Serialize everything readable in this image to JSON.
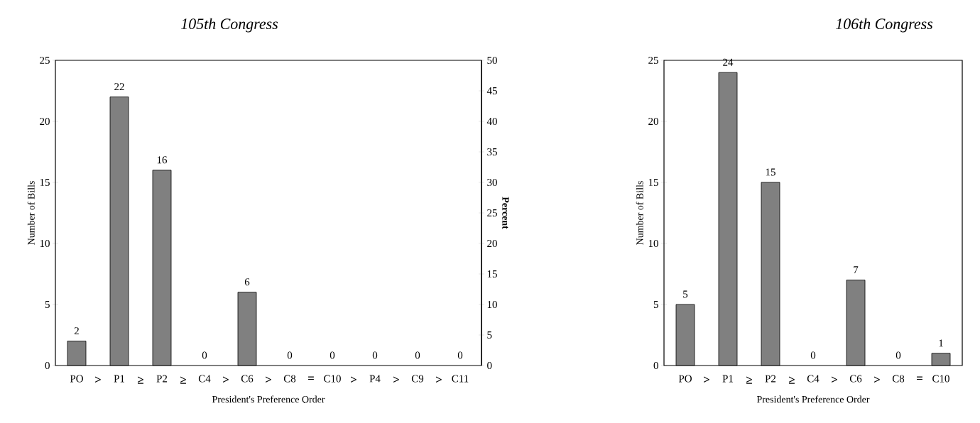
{
  "chart_data": [
    {
      "type": "bar",
      "title": "105th Congress",
      "xlabel": "President's Preference Order",
      "ylabel": "Number of Bills",
      "y2label": "Percent",
      "categories": [
        "PO",
        "P1",
        "P2",
        "C4",
        "C6",
        "C8",
        "C10",
        "P4",
        "C9",
        "C11"
      ],
      "values": [
        2,
        22,
        16,
        0,
        6,
        0,
        0,
        0,
        0,
        0
      ],
      "color": "#808080",
      "ylim": [
        0,
        25
      ],
      "yticks": [
        0,
        5,
        10,
        15,
        20,
        25
      ],
      "y2lim": [
        0,
        50
      ],
      "y2ticks": [
        0,
        5,
        10,
        15,
        20,
        25,
        30,
        35,
        40,
        45,
        50
      ],
      "data_labels": true,
      "annotations": [
        ">",
        "≥",
        "≥",
        ">",
        ">",
        "=",
        ">",
        ">",
        ">"
      ]
    },
    {
      "type": "bar",
      "title": "106th Congress",
      "xlabel": "President's Preference Order",
      "ylabel": "Number of Bills",
      "categories": [
        "PO",
        "P1",
        "P2",
        "C4",
        "C6",
        "C8",
        "C10"
      ],
      "values": [
        5,
        24,
        15,
        0,
        7,
        0,
        1
      ],
      "color": "#808080",
      "ylim": [
        0,
        25
      ],
      "yticks": [
        0,
        5,
        10,
        15,
        20,
        25
      ],
      "data_labels": true,
      "annotations": [
        ">",
        "≥",
        "≥",
        ">",
        ">",
        "="
      ]
    }
  ]
}
